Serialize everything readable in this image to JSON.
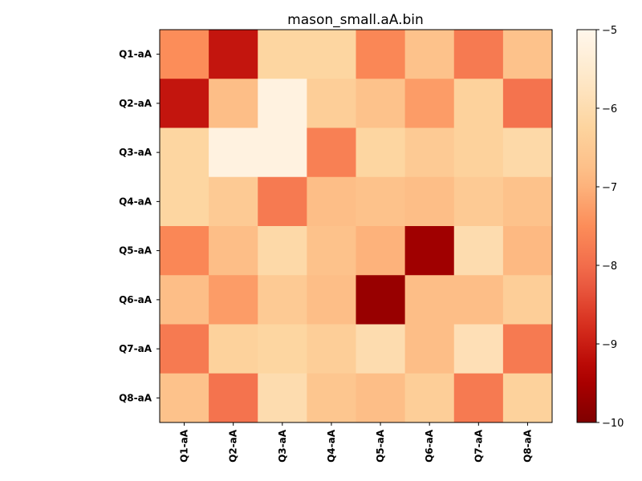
{
  "chart_data": {
    "type": "heatmap",
    "title": "mason_small.aA.bin",
    "row_labels": [
      "Q1-aA",
      "Q2-aA",
      "Q3-aA",
      "Q4-aA",
      "Q5-aA",
      "Q6-aA",
      "Q7-aA",
      "Q8-aA"
    ],
    "col_labels": [
      "Q1-aA",
      "Q2-aA",
      "Q3-aA",
      "Q4-aA",
      "Q5-aA",
      "Q6-aA",
      "Q7-aA",
      "Q8-aA"
    ],
    "values": [
      [
        -7.5,
        -9.1,
        -6.2,
        -6.2,
        -7.6,
        -6.7,
        -7.8,
        -6.7
      ],
      [
        -9.1,
        -6.8,
        -5.2,
        -6.4,
        -6.7,
        -7.3,
        -6.3,
        -7.9
      ],
      [
        -6.2,
        -5.2,
        -5.2,
        -7.7,
        -6.2,
        -6.5,
        -6.3,
        -6.1
      ],
      [
        -6.2,
        -6.5,
        -7.8,
        -6.8,
        -6.7,
        -6.8,
        -6.5,
        -6.7
      ],
      [
        -7.6,
        -6.8,
        -6.1,
        -6.7,
        -7.0,
        -9.6,
        -6.0,
        -6.9
      ],
      [
        -6.8,
        -7.3,
        -6.5,
        -6.8,
        -9.7,
        -6.8,
        -6.8,
        -6.4
      ],
      [
        -7.8,
        -6.3,
        -6.2,
        -6.4,
        -6.0,
        -6.8,
        -5.9,
        -7.8
      ],
      [
        -6.7,
        -7.9,
        -6.0,
        -6.6,
        -6.8,
        -6.4,
        -7.8,
        -6.3
      ]
    ],
    "colormap": "OrRd_r",
    "vmin": -10,
    "vmax": -5,
    "colorbar_ticks": [
      "−5",
      "−6",
      "−7",
      "−8",
      "−9",
      "−10"
    ],
    "colorbar_tick_values": [
      -5,
      -6,
      -7,
      -8,
      -9,
      -10
    ],
    "colorbar_placement": "right",
    "grid": false
  }
}
